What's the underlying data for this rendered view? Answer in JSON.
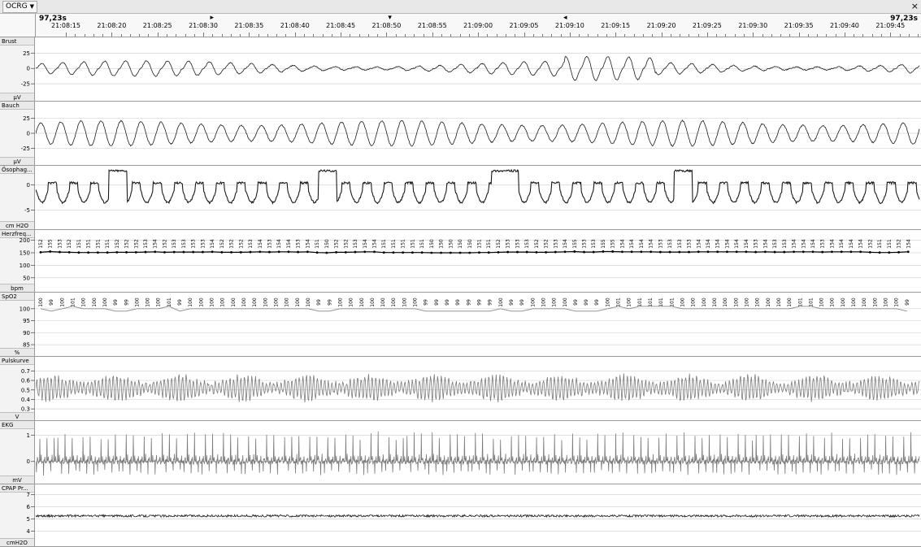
{
  "app": {
    "menu_label": "OCRG",
    "close_glyph": "×"
  },
  "timebar": {
    "span_left": "97,23s",
    "span_right": "97,23s",
    "ticks": [
      "21:08:15",
      "21:08:20",
      "21:08:25",
      "21:08:30",
      "21:08:35",
      "21:08:40",
      "21:08:45",
      "21:08:50",
      "21:08:55",
      "21:09:00",
      "21:09:05",
      "21:09:10",
      "21:09:15",
      "21:09:20",
      "21:09:25",
      "21:09:30",
      "21:09:35",
      "21:09:40",
      "21:09:45"
    ],
    "markers": [
      {
        "name": "marker-right-icon",
        "glyph": "▸",
        "pos": 0.197
      },
      {
        "name": "marker-down-icon",
        "glyph": "▾",
        "pos": 0.398
      },
      {
        "name": "marker-left-icon",
        "glyph": "◂",
        "pos": 0.596
      }
    ]
  },
  "channels": [
    {
      "id": "brust",
      "name": "Brust",
      "unit": "µV",
      "color": "#000000",
      "ticks": [
        "25",
        "0",
        "-25"
      ],
      "tick_values": [
        25,
        0,
        -25
      ],
      "range": [
        -42,
        40
      ],
      "zero": true
    },
    {
      "id": "bauch",
      "name": "Bauch",
      "unit": "µV",
      "color": "#000000",
      "ticks": [
        "25",
        "0",
        "-25"
      ],
      "tick_values": [
        25,
        0,
        -25
      ],
      "range": [
        -42,
        42
      ],
      "zero": true
    },
    {
      "id": "oesophag",
      "name": "Ösophag...",
      "unit": "cm H2O",
      "color": "#000000",
      "ticks": [
        "0",
        "-5"
      ],
      "tick_values": [
        0,
        -5
      ],
      "range": [
        -7.5,
        2.5
      ],
      "zero": true
    },
    {
      "id": "herzfreq",
      "name": "Herzfreq...",
      "unit": "bpm",
      "color": "#000000",
      "ticks": [
        "200",
        "150",
        "100",
        "50"
      ],
      "tick_values": [
        200,
        150,
        100,
        50
      ],
      "range": [
        20,
        215
      ],
      "zero": false
    },
    {
      "id": "spo2",
      "name": "SpO2",
      "unit": "%",
      "color": "#000000",
      "ticks": [
        "100",
        "95",
        "90",
        "85"
      ],
      "tick_values": [
        100,
        95,
        90,
        85
      ],
      "range": [
        83,
        104
      ],
      "zero": false
    },
    {
      "id": "pulskurve",
      "name": "Pulskurve",
      "unit": "V",
      "color": "#000000",
      "ticks": [
        "0.7",
        "0.6",
        "0.5",
        "0.4",
        "0.3"
      ],
      "tick_values": [
        0.7,
        0.6,
        0.5,
        0.4,
        0.3
      ],
      "range": [
        0.25,
        0.78
      ],
      "zero": false
    },
    {
      "id": "ekg",
      "name": "EKG",
      "unit": "mV",
      "color": "#000000",
      "ticks": [
        "1",
        "0"
      ],
      "tick_values": [
        1,
        0
      ],
      "range": [
        -0.6,
        1.3
      ],
      "zero": false
    },
    {
      "id": "cpap",
      "name": "CPAP Pr...",
      "unit": "cmH2O",
      "color": "#000000",
      "ticks": [
        "7",
        "6",
        "5",
        "4"
      ],
      "tick_values": [
        7,
        6,
        5,
        4
      ],
      "range": [
        3.3,
        7.3
      ],
      "zero": false
    }
  ],
  "hr_values": [
    "152",
    "155",
    "153",
    "152",
    "151",
    "151",
    "151",
    "151",
    "152",
    "152",
    "152",
    "153",
    "154",
    "152",
    "153",
    "153",
    "153",
    "153",
    "154",
    "152",
    "152",
    "152",
    "153",
    "154",
    "153",
    "154",
    "154",
    "153",
    "154",
    "151",
    "150",
    "152",
    "152",
    "153",
    "154",
    "154",
    "151",
    "151",
    "151",
    "151",
    "151",
    "150",
    "150",
    "150",
    "150",
    "150",
    "151",
    "151",
    "152",
    "153",
    "153",
    "153",
    "152",
    "152",
    "153",
    "154",
    "155",
    "153",
    "153",
    "155",
    "155",
    "154",
    "154",
    "154",
    "154",
    "153",
    "153",
    "153",
    "153",
    "154",
    "154",
    "154",
    "154",
    "154",
    "154",
    "153",
    "154",
    "153",
    "153",
    "154",
    "154",
    "154",
    "153",
    "154",
    "154",
    "154",
    "154",
    "152",
    "151",
    "151",
    "152",
    "154"
  ],
  "spo2_values": [
    "100",
    "99",
    "100",
    "101",
    "100",
    "100",
    "100",
    "99",
    "99",
    "100",
    "100",
    "100",
    "101",
    "99",
    "100",
    "100",
    "100",
    "100",
    "100",
    "100",
    "100",
    "100",
    "100",
    "100",
    "100",
    "100",
    "99",
    "99",
    "100",
    "100",
    "100",
    "100",
    "100",
    "100",
    "100",
    "100",
    "99",
    "99",
    "99",
    "99",
    "99",
    "99",
    "99",
    "100",
    "99",
    "99",
    "100",
    "100",
    "100",
    "100",
    "99",
    "99",
    "99",
    "100",
    "101",
    "100",
    "101",
    "101",
    "101",
    "101",
    "100",
    "100",
    "100",
    "100",
    "100",
    "100",
    "100",
    "100",
    "100",
    "100",
    "100",
    "101",
    "101",
    "100",
    "100",
    "100",
    "100",
    "100",
    "100",
    "100",
    "100",
    "99"
  ]
}
